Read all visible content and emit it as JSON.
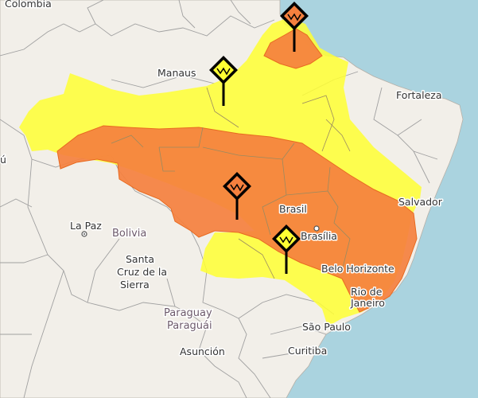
{
  "map": {
    "colors": {
      "sea": "#aad3df",
      "land": "#f2efe9",
      "border": "#999999",
      "alert_yellow": "#ffff33",
      "alert_orange": "#f5803e",
      "marker_icon": "warning-diamond-icon"
    },
    "labels": {
      "colombia": "Colombia",
      "manaus": "Manaus",
      "fortaleza": "Fortaleza",
      "salvador": "Salvador",
      "brasil": "Brasil",
      "brasilia": "Brasília",
      "belo_horizonte": "Belo Horizonte",
      "rio_de_janeiro_1": "Rio de",
      "rio_de_janeiro_2": "Janeiro",
      "sao_paulo": "São Paulo",
      "curitiba": "Curitiba",
      "la_paz": "La Paz",
      "bolivia": "Bolivia",
      "santa_cruz_1": "Santa",
      "santa_cruz_2": "Cruz de la",
      "santa_cruz_3": "Sierra",
      "paraguay_1": "Paraguay",
      "paraguay_2": "Paraguái",
      "asuncion": "Asunción",
      "edge_fragment": "ú"
    }
  }
}
